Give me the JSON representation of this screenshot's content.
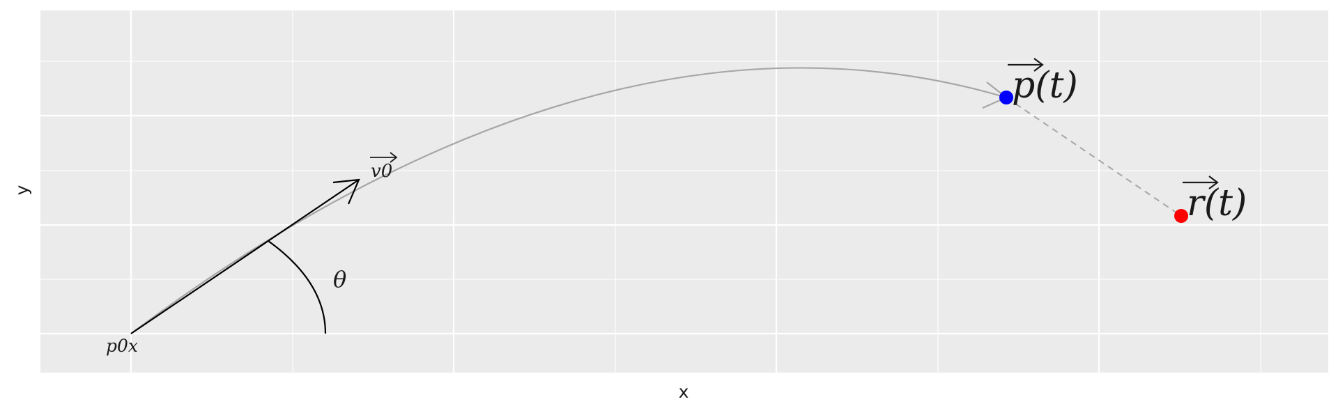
{
  "axes": {
    "xlabel": "x",
    "ylabel": "y",
    "background": "#ebebeb",
    "grid_color": "#ffffff"
  },
  "labels": {
    "origin": "p0x",
    "velocity": "v0",
    "angle": "θ",
    "projectile": "p(t)",
    "target": "r(t)"
  },
  "colors": {
    "trajectory": "#a6a6a6",
    "vector": "#000000",
    "projectile": "#0000ff",
    "target": "#ff0000",
    "dashed": "#a6a6a6"
  }
}
